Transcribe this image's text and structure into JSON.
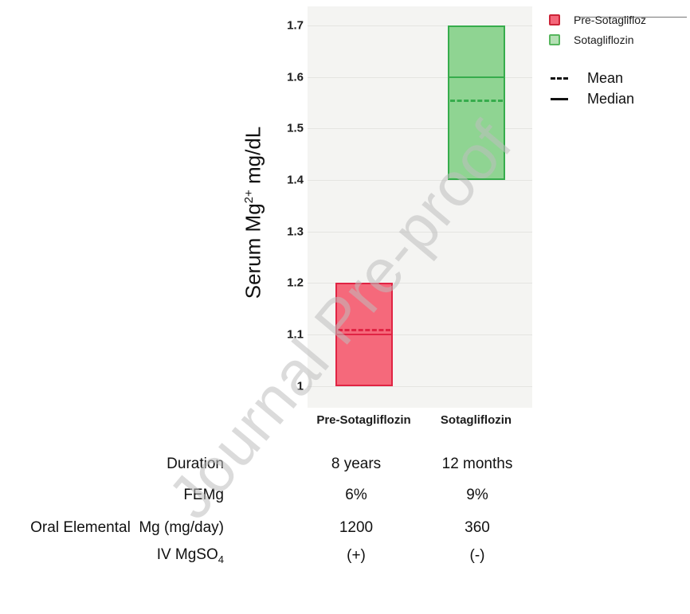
{
  "watermark": "Journal Pre-proof",
  "chart_data": {
    "type": "box",
    "title": "",
    "ylabel": {
      "text": "Serum Mg",
      "sup": "2+",
      "suffix": " mg/dL"
    },
    "xlabel": "",
    "ylim": [
      0.958,
      1.737
    ],
    "grid": true,
    "legend_position": "top-right",
    "yticks": [
      "1.7",
      "1.6",
      "1.5",
      "1.4",
      "1.3",
      "1.2",
      "1.1",
      "1"
    ],
    "ytick_values": [
      1.7,
      1.6,
      1.5,
      1.4,
      1.3,
      1.2,
      1.1,
      1.0
    ],
    "categories": [
      "Pre-Sotagliflozin",
      "Sotagliflozin"
    ],
    "series": [
      {
        "name": "Pre-Sotagliflozin",
        "low": 1.0,
        "high": 1.2,
        "median": 1.1,
        "mean": 1.11,
        "fill": "#f5697b",
        "stroke": "#e02444"
      },
      {
        "name": "Sotagliflozin",
        "low": 1.4,
        "high": 1.7,
        "median": 1.6,
        "mean": 1.555,
        "fill": "#8fd492",
        "stroke": "#36ac4c"
      }
    ]
  },
  "legend": {
    "box_items": [
      {
        "label": "Pre-Sotaglifloz",
        "fill": "#f4677a",
        "stroke": "#cc2438",
        "strikethrough": true
      },
      {
        "label": "Sotagliflozin",
        "fill": "#b5e0b5",
        "stroke": "#57b65e",
        "strikethrough": false
      }
    ],
    "line_items": [
      {
        "style": "dashed",
        "label": "Mean"
      },
      {
        "style": "solid",
        "label": "Median"
      }
    ]
  },
  "table": {
    "rows": [
      {
        "label": "Duration",
        "pre": "8 years",
        "sota": "12 months"
      },
      {
        "label": "FEMg",
        "pre": "6%",
        "sota": "9%"
      },
      {
        "label": "Oral Elemental  Mg (mg/day)",
        "pre": "1200",
        "sota": "360"
      },
      {
        "label": "IV MgSO",
        "label_sub": "4",
        "pre": "(+)",
        "sota": "(-)"
      }
    ]
  }
}
